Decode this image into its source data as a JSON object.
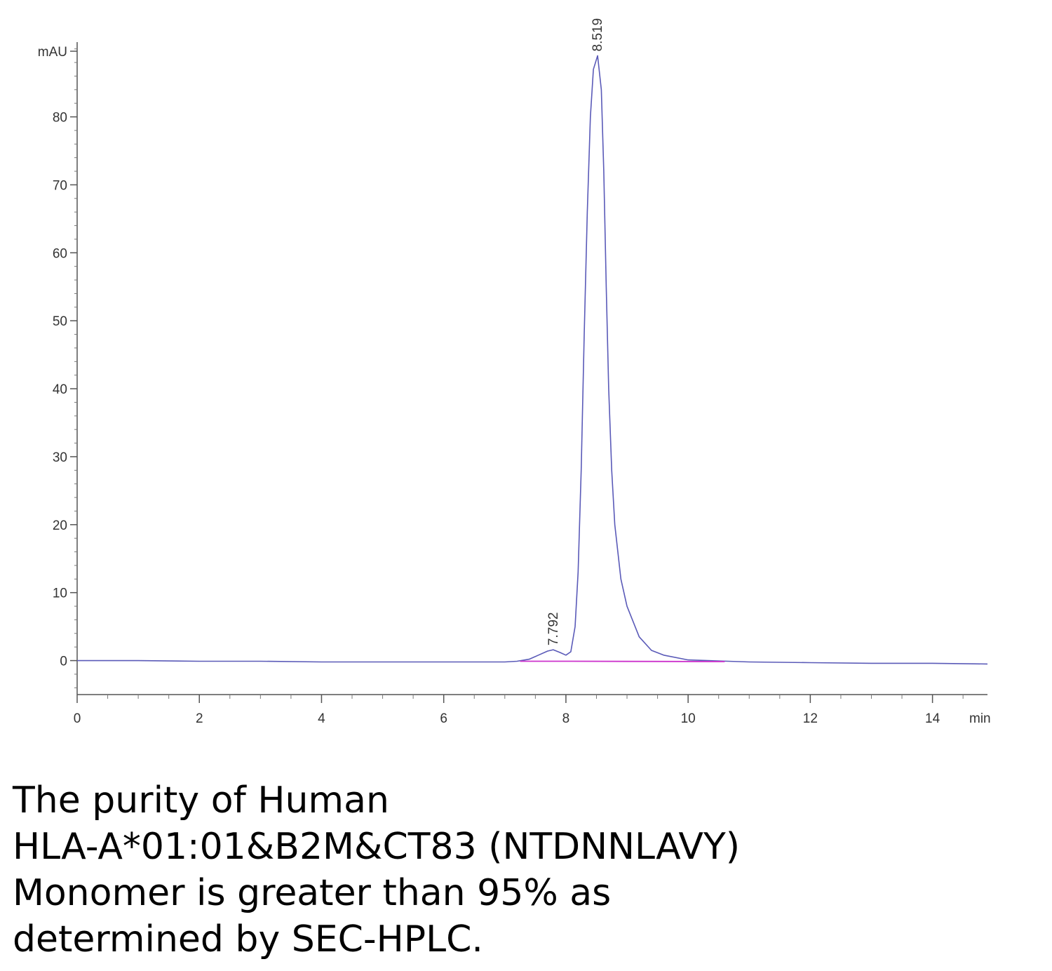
{
  "chart_data": {
    "type": "line",
    "ylabel": "mAU",
    "xlabel": "min",
    "xlim": [
      0,
      14.9
    ],
    "ylim": [
      -5,
      91
    ],
    "xticks": [
      0,
      2,
      4,
      6,
      8,
      10,
      12,
      14
    ],
    "yticks": [
      0,
      10,
      20,
      30,
      40,
      50,
      60,
      70,
      80
    ],
    "grid": false,
    "series": [
      {
        "color": "#5a5ab8",
        "x": [
          0,
          1,
          2,
          3,
          4,
          5,
          6,
          7,
          7.2,
          7.4,
          7.55,
          7.7,
          7.792,
          7.9,
          8.0,
          8.08,
          8.15,
          8.2,
          8.25,
          8.3,
          8.35,
          8.4,
          8.45,
          8.519,
          8.58,
          8.62,
          8.66,
          8.7,
          8.75,
          8.8,
          8.9,
          9.0,
          9.2,
          9.4,
          9.6,
          10,
          11,
          12,
          13,
          14,
          14.9
        ],
        "y": [
          0,
          0,
          -0.1,
          -0.1,
          -0.2,
          -0.2,
          -0.2,
          -0.2,
          -0.1,
          0.2,
          0.8,
          1.4,
          1.6,
          1.2,
          0.8,
          1.3,
          5,
          13,
          28,
          48,
          66,
          80,
          87,
          89,
          84,
          72,
          55,
          40,
          28,
          20,
          12,
          8,
          3.5,
          1.5,
          0.8,
          0.1,
          -0.2,
          -0.3,
          -0.4,
          -0.4,
          -0.5
        ]
      },
      {
        "color": "#cc33cc",
        "x": [
          7.25,
          8.1,
          10.6
        ],
        "y": [
          -0.1,
          -0.1,
          -0.15
        ]
      }
    ],
    "peak_labels": [
      {
        "x": 7.792,
        "label": "7.792"
      },
      {
        "x": 8.519,
        "label": "8.519"
      }
    ]
  },
  "caption": {
    "line1": "The purity of Human",
    "line2": "HLA-A*01:01&B2M&CT83 (NTDNNLAVY)",
    "line3": "Monomer is greater than 95% as",
    "line4": "determined by SEC-HPLC."
  }
}
